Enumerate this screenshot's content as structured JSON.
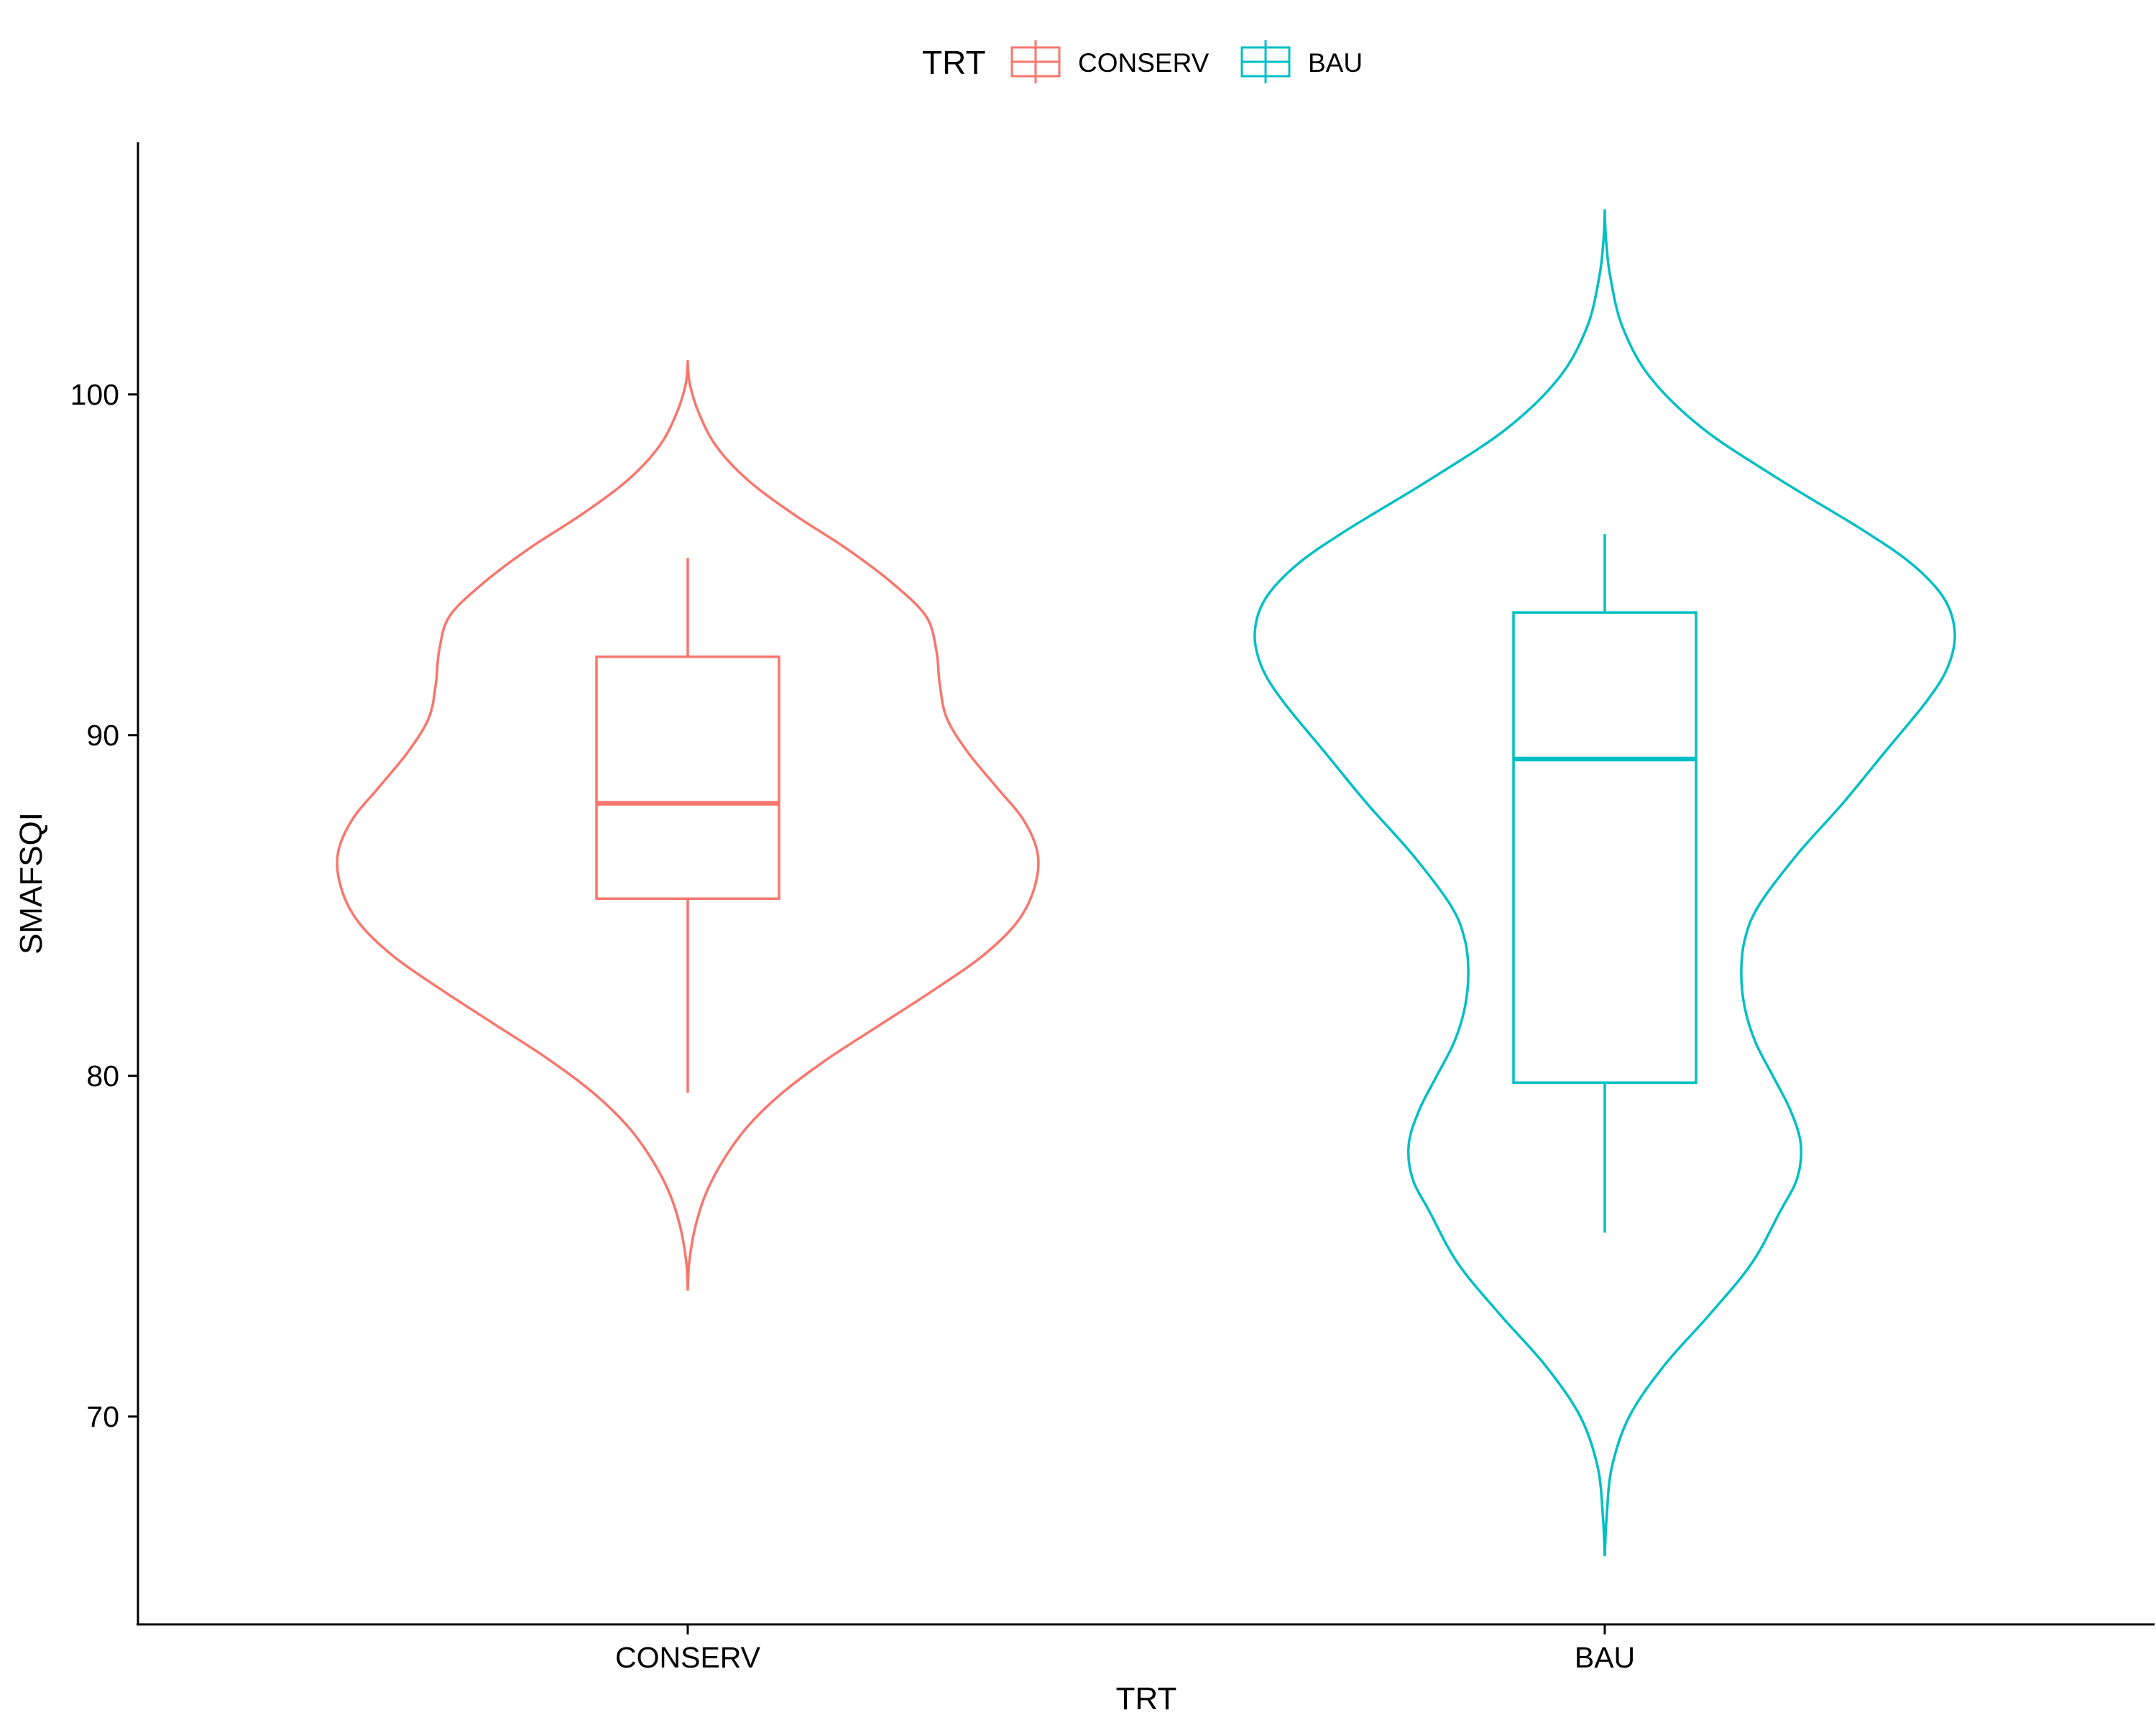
{
  "chart_data": {
    "type": "violin",
    "xlabel": "TRT",
    "ylabel": "SMAFSQI",
    "ylim": [
      63.9,
      107.4
    ],
    "yticks": [
      70,
      80,
      90,
      100
    ],
    "categories": [
      "CONSERV",
      "BAU"
    ],
    "legend": {
      "title": "TRT",
      "position": "top",
      "entries": [
        {
          "label": "CONSERV",
          "color": "#F8766D"
        },
        {
          "label": "BAU",
          "color": "#00BFC4"
        }
      ]
    },
    "grid": false,
    "series": [
      {
        "name": "CONSERV",
        "color": "#F8766D",
        "box": {
          "whisker_low": 79.5,
          "q1": 85.2,
          "median": 88.0,
          "q3": 92.3,
          "whisker_high": 95.2
        },
        "density": [
          [
            73.7,
            0.0
          ],
          [
            74.5,
            0.004
          ],
          [
            75.5,
            0.02
          ],
          [
            76.5,
            0.05
          ],
          [
            77.5,
            0.1
          ],
          [
            78.5,
            0.17
          ],
          [
            79.5,
            0.27
          ],
          [
            80.5,
            0.4
          ],
          [
            81.5,
            0.55
          ],
          [
            82.5,
            0.7
          ],
          [
            83.5,
            0.84
          ],
          [
            84.5,
            0.94
          ],
          [
            85.5,
            0.99
          ],
          [
            86.5,
            1.0
          ],
          [
            87.5,
            0.96
          ],
          [
            88.5,
            0.88
          ],
          [
            89.5,
            0.8
          ],
          [
            90.5,
            0.74
          ],
          [
            91.5,
            0.72
          ],
          [
            92.5,
            0.71
          ],
          [
            93.5,
            0.68
          ],
          [
            94.5,
            0.58
          ],
          [
            95.5,
            0.45
          ],
          [
            96.5,
            0.3
          ],
          [
            97.5,
            0.17
          ],
          [
            98.5,
            0.08
          ],
          [
            99.5,
            0.03
          ],
          [
            100.3,
            0.006
          ],
          [
            100.9,
            0.0
          ]
        ]
      },
      {
        "name": "BAU",
        "color": "#00BFC4",
        "box": {
          "whisker_low": 75.4,
          "q1": 79.8,
          "median": 89.3,
          "q3": 93.6,
          "whisker_high": 95.9
        },
        "density": [
          [
            65.9,
            0.0
          ],
          [
            67.0,
            0.005
          ],
          [
            68.5,
            0.02
          ],
          [
            70.0,
            0.07
          ],
          [
            71.5,
            0.17
          ],
          [
            73.0,
            0.3
          ],
          [
            74.5,
            0.42
          ],
          [
            76.0,
            0.5
          ],
          [
            77.0,
            0.55
          ],
          [
            78.0,
            0.56
          ],
          [
            79.0,
            0.53
          ],
          [
            80.0,
            0.48
          ],
          [
            81.0,
            0.43
          ],
          [
            82.0,
            0.4
          ],
          [
            83.0,
            0.39
          ],
          [
            84.0,
            0.4
          ],
          [
            85.0,
            0.44
          ],
          [
            86.5,
            0.55
          ],
          [
            88.0,
            0.68
          ],
          [
            89.5,
            0.8
          ],
          [
            91.0,
            0.92
          ],
          [
            92.0,
            0.98
          ],
          [
            93.0,
            1.0
          ],
          [
            94.0,
            0.97
          ],
          [
            95.0,
            0.88
          ],
          [
            96.0,
            0.74
          ],
          [
            97.5,
            0.5
          ],
          [
            99.0,
            0.28
          ],
          [
            100.5,
            0.13
          ],
          [
            102.0,
            0.05
          ],
          [
            103.5,
            0.015
          ],
          [
            104.5,
            0.004
          ],
          [
            105.3,
            0.0
          ]
        ]
      }
    ]
  }
}
